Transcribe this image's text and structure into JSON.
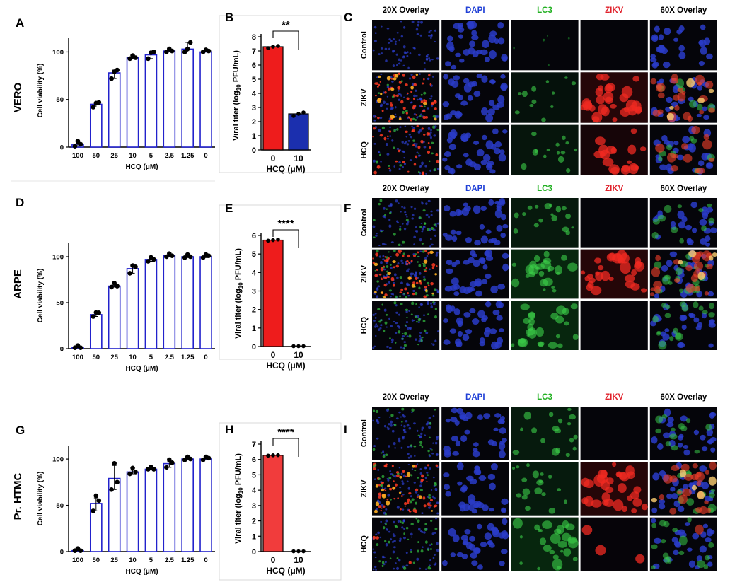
{
  "rows": [
    {
      "panels": {
        "viability": "A",
        "titer": "B",
        "images": "C"
      },
      "cell_line": "VERO",
      "titer_ylabel_main": "Viral titer (log",
      "titer_ylabel_sub": "10",
      "titer_ylabel_end": " PFU/mL)",
      "titer_significance": "**",
      "image_headers": [
        "20X Overlay",
        "DAPI",
        "LC3",
        "ZIKV",
        "60X Overlay"
      ],
      "image_row_labels": [
        "Control",
        "ZIKV",
        "HCQ"
      ]
    },
    {
      "panels": {
        "viability": "D",
        "titer": "E",
        "images": "F"
      },
      "cell_line": "ARPE",
      "titer_ylabel_main": "Viral titer (log",
      "titer_ylabel_sub": "10",
      "titer_ylabel_end": " PFU/mL)",
      "titer_significance": "****",
      "image_headers": [
        "20X Overlay",
        "DAPI",
        "LC3",
        "ZIKV",
        "60X Overlay"
      ],
      "image_row_labels": [
        "Control",
        "ZIKV",
        "HCQ"
      ]
    },
    {
      "panels": {
        "viability": "G",
        "titer": "H",
        "images": "I"
      },
      "cell_line": "Pr. HTMC",
      "titer_ylabel_main": "Viral titer (log",
      "titer_ylabel_sub": "10",
      "titer_ylabel_end": " PFU/mL)",
      "titer_significance": "****",
      "image_headers": [
        "20X Overlay",
        "DAPI",
        "LC3",
        "ZIKV",
        "60X Overlay"
      ],
      "image_row_labels": [
        "Control",
        "ZIKV",
        "HCQ"
      ]
    }
  ],
  "image_header_colors": [
    "#000000",
    "#1f3fd6",
    "#22b022",
    "#e0202a",
    "#000000"
  ],
  "chart_data": [
    {
      "type": "bar",
      "panel": "A",
      "categories": [
        "100",
        "50",
        "25",
        "10",
        "5",
        "2.5",
        "1.25",
        "0"
      ],
      "values": [
        3,
        45,
        78,
        94,
        97,
        101,
        103,
        100
      ],
      "points": [
        [
          1,
          3,
          4
        ],
        [
          42,
          47,
          44
        ],
        [
          72,
          81,
          77
        ],
        [
          93,
          94,
          94
        ],
        [
          93,
          100,
          97
        ],
        [
          100,
          101,
          101
        ],
        [
          100,
          110,
          101
        ],
        [
          100,
          101,
          100
        ]
      ],
      "xlabel": "HCQ (μM)",
      "ylabel": "Cell viability (%)",
      "yticks": [
        0,
        50,
        100
      ],
      "ylim": [
        0,
        110
      ],
      "bar_color": "#ffffff",
      "edge_color": "#2222cc"
    },
    {
      "type": "bar",
      "panel": "B",
      "categories": [
        "0",
        "10"
      ],
      "values": [
        7.3,
        2.55
      ],
      "points": [
        [
          7.2,
          7.3,
          7.35
        ],
        [
          2.4,
          2.55,
          2.65
        ]
      ],
      "xlabel": "HCQ (μM)",
      "yticks": [
        0,
        1,
        2,
        3,
        4,
        5,
        6,
        7,
        8
      ],
      "ylim": [
        0,
        8
      ],
      "bar_colors": [
        "#ee1c1c",
        "#1b2fae"
      ]
    },
    {
      "type": "bar",
      "panel": "D",
      "categories": [
        "100",
        "50",
        "25",
        "10",
        "5",
        "2.5",
        "1.25",
        "0"
      ],
      "values": [
        1,
        37,
        68,
        87,
        97,
        101,
        100,
        100
      ],
      "points": [
        [
          1,
          1,
          1
        ],
        [
          35,
          39,
          37
        ],
        [
          67,
          68,
          69
        ],
        [
          82,
          89,
          88
        ],
        [
          95,
          97,
          97
        ],
        [
          100,
          101,
          101
        ],
        [
          99,
          100,
          100
        ],
        [
          99,
          101,
          100
        ]
      ],
      "xlabel": "HCQ (μM)",
      "ylabel": "Cell viability (%)",
      "yticks": [
        0,
        50,
        100
      ],
      "ylim": [
        0,
        110
      ],
      "bar_color": "#ffffff",
      "edge_color": "#2222cc"
    },
    {
      "type": "bar",
      "panel": "E",
      "categories": [
        "0",
        "10"
      ],
      "values": [
        5.75,
        0.02
      ],
      "points": [
        [
          5.72,
          5.75,
          5.78
        ],
        [
          0.02,
          0.02,
          0.02
        ]
      ],
      "xlabel": "HCQ (μM)",
      "yticks": [
        0,
        1,
        2,
        3,
        4,
        5,
        6
      ],
      "ylim": [
        0,
        6
      ],
      "bar_colors": [
        "#ee1c1c",
        "#1b2fae"
      ]
    },
    {
      "type": "bar",
      "panel": "G",
      "categories": [
        "100",
        "50",
        "25",
        "10",
        "5",
        "2.5",
        "1.25",
        "0"
      ],
      "values": [
        1,
        52,
        79,
        86,
        89,
        95,
        100,
        100
      ],
      "points": [
        [
          1,
          1,
          1
        ],
        [
          44,
          55,
          58
        ],
        [
          67,
          75,
          93
        ],
        [
          84,
          86,
          88
        ],
        [
          89,
          89,
          89
        ],
        [
          91,
          96,
          97
        ],
        [
          99,
          100,
          100
        ],
        [
          99,
          101,
          100
        ]
      ],
      "xlabel": "HCQ (μM)",
      "ylabel": "Cell viability (%)",
      "yticks": [
        0,
        50,
        100
      ],
      "ylim": [
        0,
        110
      ],
      "bar_color": "#ffffff",
      "edge_color": "#2222cc"
    },
    {
      "type": "bar",
      "panel": "H",
      "categories": [
        "0",
        "10"
      ],
      "values": [
        6.27,
        0.02
      ],
      "points": [
        [
          6.25,
          6.27,
          6.28
        ],
        [
          0.02,
          0.02,
          0.02
        ]
      ],
      "xlabel": "HCQ (μM)",
      "yticks": [
        0,
        1,
        2,
        3,
        4,
        5,
        6,
        7
      ],
      "ylim": [
        0,
        7
      ],
      "bar_colors": [
        "#f13c3c",
        "#1b2fae"
      ]
    }
  ]
}
